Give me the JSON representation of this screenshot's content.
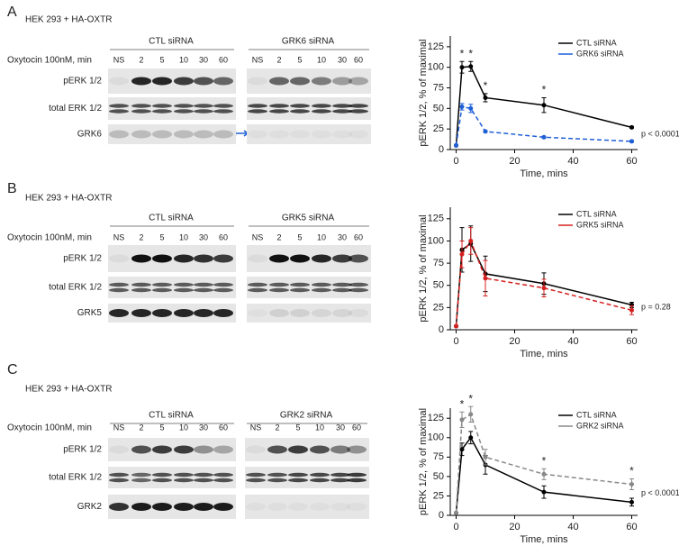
{
  "panels": [
    {
      "letter": "A",
      "title": "HEK 293 + HA-OXTR",
      "treatment_label": "Oxytocin 100nM, min",
      "groups": [
        {
          "name": "CTL siRNA",
          "lanes": [
            "NS",
            "2",
            "5",
            "10",
            "30",
            "60"
          ]
        },
        {
          "name": "GRK6 siRNA",
          "lanes": [
            "NS",
            "2",
            "5",
            "10",
            "30",
            "60"
          ]
        }
      ],
      "rows": [
        "pERK 1/2",
        "total ERK 1/2",
        "GRK6"
      ]
    },
    {
      "letter": "B",
      "title": "HEK 293 + HA-OXTR",
      "treatment_label": "Oxytocin 100nM, min",
      "groups": [
        {
          "name": "CTL siRNA",
          "lanes": [
            "NS",
            "2",
            "5",
            "10",
            "30",
            "60"
          ]
        },
        {
          "name": "GRK5 siRNA",
          "lanes": [
            "NS",
            "2",
            "5",
            "10",
            "30",
            "60"
          ]
        }
      ],
      "rows": [
        "pERK 1/2",
        "total ERK 1/2",
        "GRK5"
      ]
    },
    {
      "letter": "C",
      "title": "HEK 293 + HA-OXTR",
      "treatment_label": "Oxytocin 100nM, min",
      "groups": [
        {
          "name": "CTL siRNA",
          "lanes": [
            "NS",
            "2",
            "5",
            "10",
            "30",
            "60"
          ]
        },
        {
          "name": "GRK2 siRNA",
          "lanes": [
            "NS",
            "2",
            "5",
            "10",
            "30",
            "60"
          ]
        }
      ],
      "rows": [
        "pERK 1/2",
        "total ERK 1/2",
        "GRK2"
      ]
    }
  ],
  "chart_data": [
    {
      "type": "line",
      "x": [
        0,
        2,
        5,
        10,
        30,
        60
      ],
      "series": [
        {
          "name": "CTL siRNA",
          "color": "#000000",
          "line_style": "solid",
          "values": [
            5,
            100,
            101,
            63,
            54,
            27
          ],
          "errors": [
            0,
            7,
            6,
            5,
            9,
            1
          ]
        },
        {
          "name": "GRK6 siRNA",
          "color": "#1f5fd6",
          "line_style": "dashed",
          "values": [
            5,
            52,
            50,
            22,
            15,
            10
          ],
          "errors": [
            0,
            4,
            5,
            1,
            1,
            1
          ]
        }
      ],
      "xlabel": "Time, mins",
      "ylabel": "pERK 1/2, % of maximal",
      "xlim": [
        -2,
        62
      ],
      "ylim": [
        0,
        138
      ],
      "xticks": [
        0,
        20,
        40,
        60
      ],
      "yticks": [
        0,
        25,
        50,
        75,
        100,
        125
      ],
      "annotations": [
        {
          "text": "*",
          "x": 2
        },
        {
          "text": "*",
          "x": 5
        },
        {
          "text": "*",
          "x": 10
        },
        {
          "text": "*",
          "x": 30
        }
      ],
      "p_value": "p < 0.0001",
      "legend": "upper right"
    },
    {
      "type": "line",
      "x": [
        0,
        2,
        5,
        10,
        30,
        60
      ],
      "series": [
        {
          "name": "CTL siRNA",
          "color": "#000000",
          "line_style": "solid",
          "values": [
            4,
            90,
            97,
            63,
            52,
            28
          ],
          "errors": [
            0,
            25,
            20,
            20,
            12,
            3
          ]
        },
        {
          "name": "GRK5 siRNA",
          "color": "#d62020",
          "line_style": "dashed",
          "values": [
            4,
            85,
            100,
            58,
            47,
            22
          ],
          "errors": [
            0,
            15,
            15,
            20,
            10,
            5
          ]
        }
      ],
      "xlabel": "Time, mins",
      "ylabel": "pERK 1/2, % of maximal",
      "xlim": [
        -2,
        62
      ],
      "ylim": [
        0,
        138
      ],
      "xticks": [
        0,
        20,
        40,
        60
      ],
      "yticks": [
        0,
        25,
        50,
        75,
        100,
        125
      ],
      "annotations": [],
      "p_value": "p = 0.28",
      "legend": "upper right"
    },
    {
      "type": "line",
      "x": [
        0,
        2,
        5,
        10,
        30,
        60
      ],
      "series": [
        {
          "name": "CTL siRNA",
          "color": "#000000",
          "line_style": "solid",
          "values": [
            3,
            85,
            100,
            65,
            30,
            17
          ],
          "errors": [
            0,
            8,
            8,
            12,
            8,
            5
          ]
        },
        {
          "name": "GRK2 siRNA",
          "color": "#888888",
          "line_style": "dashed",
          "values": [
            3,
            123,
            130,
            75,
            53,
            40
          ],
          "errors": [
            0,
            10,
            10,
            10,
            7,
            7
          ]
        }
      ],
      "xlabel": "Time, mins",
      "ylabel": "pERK 1/2, % of maximal",
      "xlim": [
        -2,
        62
      ],
      "ylim": [
        0,
        138
      ],
      "xticks": [
        0,
        20,
        40,
        60
      ],
      "yticks": [
        0,
        25,
        50,
        75,
        100,
        125
      ],
      "annotations": [
        {
          "text": "*",
          "x": 2
        },
        {
          "text": "*",
          "x": 5
        },
        {
          "text": "*",
          "x": 30
        },
        {
          "text": "*",
          "x": 60
        }
      ],
      "p_value": "p < 0.0001",
      "legend": "upper right"
    }
  ]
}
